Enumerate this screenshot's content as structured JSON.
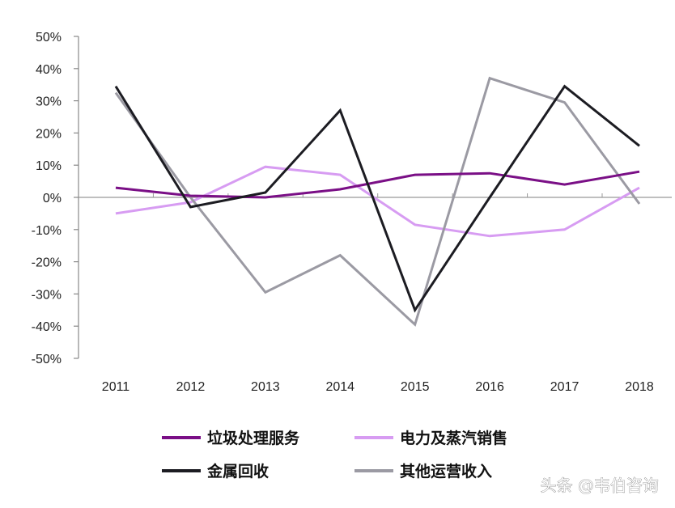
{
  "chart_data": {
    "type": "line",
    "title": "",
    "xlabel": "",
    "ylabel": "",
    "categories": [
      "2011",
      "2012",
      "2013",
      "2014",
      "2015",
      "2016",
      "2017",
      "2018"
    ],
    "ylim": [
      -50,
      50
    ],
    "yticks": [
      50,
      40,
      30,
      20,
      10,
      0,
      -10,
      -20,
      -30,
      -40,
      -50
    ],
    "ytick_labels": [
      "50%",
      "40%",
      "30%",
      "20%",
      "10%",
      "0%",
      "-10%",
      "-20%",
      "-30%",
      "-40%",
      "-50%"
    ],
    "grid": false,
    "legend_position": "bottom",
    "series": [
      {
        "name": "垃圾处理服务",
        "color": "#7a0f86",
        "values": [
          3,
          0.5,
          0,
          2.5,
          7,
          7.5,
          4,
          8
        ]
      },
      {
        "name": "电力及蒸汽销售",
        "color": "#d79cf2",
        "values": [
          -5,
          -1.5,
          9.5,
          7,
          -8.5,
          -12,
          -10,
          3
        ]
      },
      {
        "name": "金属回收",
        "color": "#1c1c22",
        "values": [
          34.5,
          -3,
          1.5,
          27,
          -35,
          0,
          34.5,
          16
        ]
      },
      {
        "name": "其他运营收入",
        "color": "#9b9aa3",
        "values": [
          32.5,
          0,
          -29.5,
          -18,
          -39.5,
          37,
          29.5,
          -2
        ]
      }
    ]
  },
  "watermark": {
    "text": "头条 @韦伯咨询"
  }
}
